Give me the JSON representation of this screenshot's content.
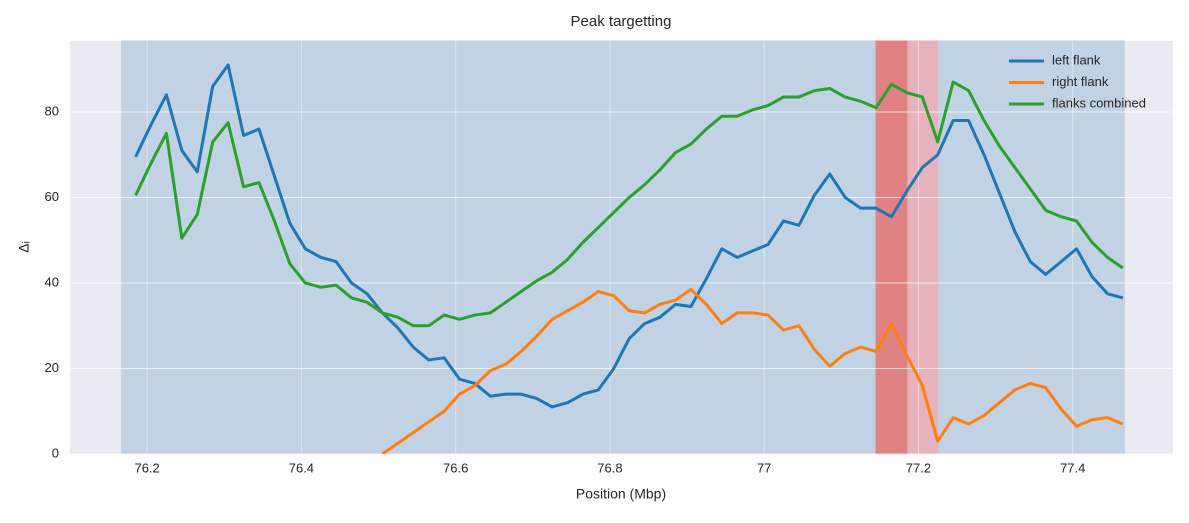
{
  "chart_data": {
    "type": "line",
    "title": "Peak targetting",
    "x_label": "Position (Mbp)",
    "y_label": "Δᵢ",
    "x": [
      76.185,
      76.205,
      76.225,
      76.245,
      76.265,
      76.285,
      76.305,
      76.325,
      76.345,
      76.365,
      76.385,
      76.405,
      76.425,
      76.445,
      76.465,
      76.485,
      76.505,
      76.525,
      76.545,
      76.565,
      76.585,
      76.605,
      76.625,
      76.645,
      76.665,
      76.685,
      76.705,
      76.725,
      76.745,
      76.765,
      76.785,
      76.805,
      76.825,
      76.845,
      76.865,
      76.885,
      76.905,
      76.925,
      76.945,
      76.965,
      76.985,
      77.005,
      77.025,
      77.045,
      77.065,
      77.085,
      77.105,
      77.125,
      77.145,
      77.165,
      77.185,
      77.205,
      77.225,
      77.245,
      77.265,
      77.285,
      77.305,
      77.325,
      77.345,
      77.365,
      77.385,
      77.405,
      77.425,
      77.445,
      77.465
    ],
    "series": [
      {
        "name": "left flank",
        "color": "#1f77b4",
        "values": [
          69.5,
          77,
          84,
          71,
          66,
          86,
          91,
          74.5,
          76,
          65,
          54,
          48,
          46,
          45,
          40,
          37.5,
          33,
          29.5,
          25,
          22,
          22.5,
          17.5,
          16.5,
          13.5,
          14,
          14,
          13,
          11,
          12,
          14,
          15,
          20,
          27,
          30.5,
          32,
          35,
          34.5,
          41,
          48,
          46,
          47.5,
          49,
          54.5,
          53.5,
          60.5,
          65.5,
          60,
          57.5,
          57.5,
          55.5,
          61.5,
          67,
          70,
          78,
          78,
          70,
          61,
          52,
          45,
          42,
          45,
          48,
          41.5,
          37.5,
          36.5
        ]
      },
      {
        "name": "right flank",
        "color": "#ff7f0e",
        "values": [
          null,
          null,
          null,
          null,
          null,
          null,
          null,
          null,
          null,
          null,
          null,
          null,
          null,
          null,
          null,
          null,
          0,
          2.5,
          5,
          7.5,
          10,
          14,
          16,
          19.5,
          21,
          24,
          27.5,
          31.5,
          33.5,
          35.5,
          38,
          37,
          33.5,
          33,
          35,
          36,
          38.5,
          35,
          30.5,
          33,
          33,
          32.5,
          29,
          30,
          24.5,
          20.5,
          23.5,
          25,
          24,
          30.5,
          23,
          16,
          3,
          8.5,
          7,
          9,
          12,
          15,
          16.5,
          15.5,
          10.5,
          6.5,
          8,
          8.5,
          7
        ]
      },
      {
        "name": "flanks combined",
        "color": "#2ca02c",
        "values": [
          60.5,
          68,
          75,
          50.5,
          56,
          73,
          77.5,
          62.5,
          63.5,
          54.5,
          44.5,
          40,
          39,
          39.5,
          36.5,
          35.5,
          33,
          32,
          30,
          30,
          32.5,
          31.5,
          32.5,
          33,
          35.5,
          38,
          40.5,
          42.5,
          45.5,
          49.5,
          53,
          56.5,
          60,
          63,
          66.5,
          70.5,
          72.5,
          76,
          79,
          79,
          80.5,
          81.5,
          83.5,
          83.5,
          85,
          85.5,
          83.5,
          82.5,
          81,
          86.5,
          84.5,
          83.5,
          73,
          87,
          85,
          78,
          72,
          67,
          62,
          57,
          55.5,
          54.5,
          49.5,
          46,
          43.5
        ]
      }
    ],
    "spans": [
      {
        "start": 76.167,
        "end": 77.467,
        "color": "#c1d2e5"
      },
      {
        "start": 77.145,
        "end": 77.225,
        "color": "#e6b3bd"
      },
      {
        "start": 77.145,
        "end": 77.185,
        "color": "#e08284"
      }
    ],
    "xlim": [
      76.1,
      77.53
    ],
    "ylim": [
      0,
      96.6
    ],
    "xticks": [
      76.2,
      76.4,
      76.6,
      76.8,
      77.0,
      77.2,
      77.4
    ],
    "yticks": [
      0,
      20,
      40,
      60,
      80
    ],
    "grid": true,
    "legend": "upper right"
  }
}
